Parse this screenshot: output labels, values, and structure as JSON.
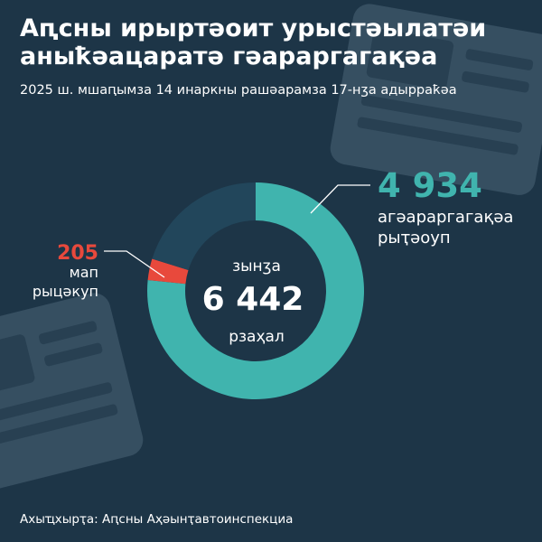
{
  "title_lines": [
    "Аԥсны ирыртәоит урыстәылатәи",
    "аныҟәацаратә гәараргагақәа"
  ],
  "subtitle": "2025 ш. мшаԥымза 14 инаркны рашәарамза 17-нӡа адырраҟәа",
  "source": "Ахыҵхырҭа: Аԥсны Аҳәынҭавтоинспекциа",
  "colors": {
    "background": "#1d3547",
    "returned": "#40b4ae",
    "rejected": "#e8493c",
    "remainder": "#22465b"
  },
  "chart_data": {
    "type": "donut",
    "total": {
      "top_label": "зынӡа",
      "value_text": "6 442",
      "value": 6442,
      "bottom_label": "рзаҳал"
    },
    "slices": [
      {
        "name": "returned",
        "value": 4934,
        "value_text": "4 934",
        "label_lines": [
          "агәараргагақәа",
          "рыҭәоуп"
        ],
        "color": "#40b4ae"
      },
      {
        "name": "rejected",
        "value": 205,
        "value_text": "205",
        "label_lines": [
          "мап",
          "рыцәкуп"
        ],
        "color": "#e8493c"
      }
    ]
  }
}
